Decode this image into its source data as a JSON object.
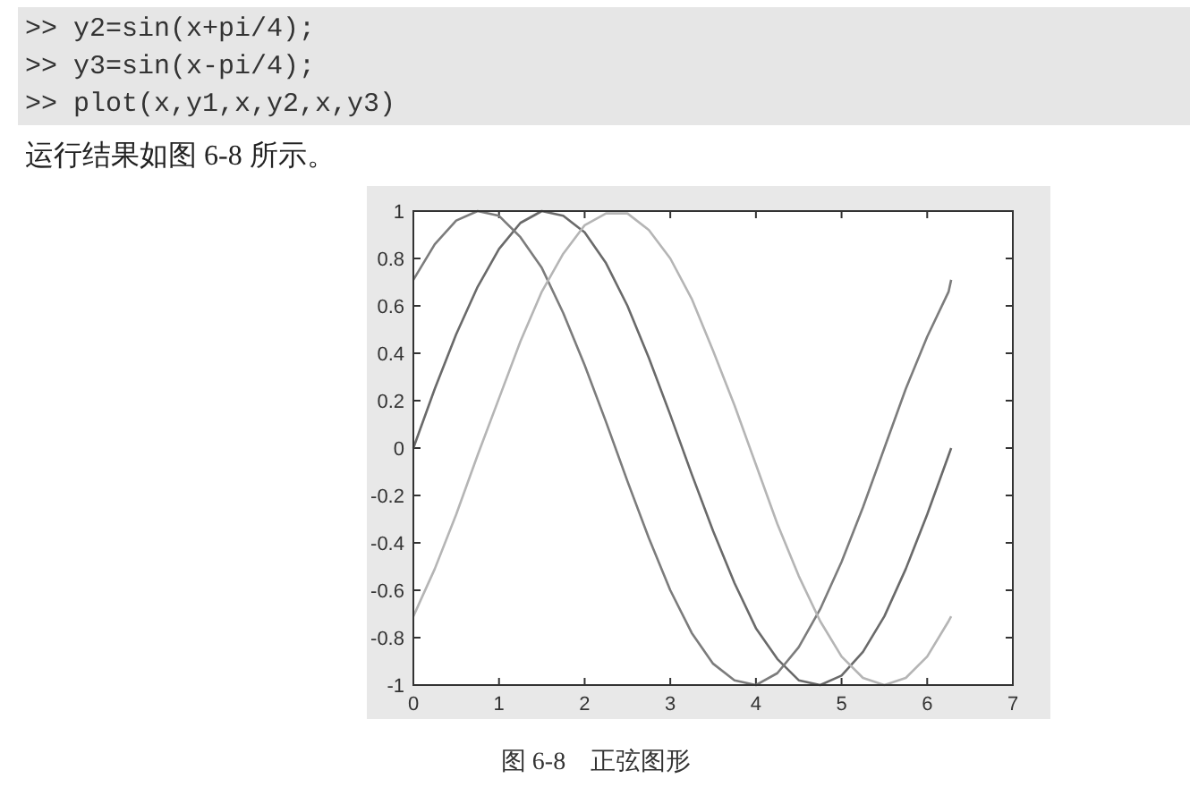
{
  "chart_data": {
    "type": "line",
    "annotations": [
      ">> y2=sin(x+pi/4);",
      ">> y3=sin(x-pi/4);",
      ">> plot(x,y1,x,y2,x,y3)",
      "运行结果如图 6-8 所示。",
      "图 6-8　正弦图形"
    ],
    "xlim": [
      0,
      7
    ],
    "ylim": [
      -1,
      1
    ],
    "xticks": [
      0,
      1,
      2,
      3,
      4,
      5,
      6,
      7
    ],
    "yticks": [
      -1,
      -0.8,
      -0.6,
      -0.4,
      -0.2,
      0,
      0.2,
      0.4,
      0.6,
      0.8,
      1
    ],
    "grid": false,
    "series": [
      {
        "color": "#6a6a6a",
        "x": [
          0,
          0.25,
          0.5,
          0.75,
          1,
          1.25,
          1.5,
          1.75,
          2,
          2.25,
          2.5,
          2.75,
          3,
          3.25,
          3.5,
          3.75,
          4,
          4.25,
          4.5,
          4.75,
          5,
          5.25,
          5.5,
          5.75,
          6,
          6.25,
          6.28
        ],
        "values": [
          0,
          0.25,
          0.48,
          0.68,
          0.84,
          0.95,
          1.0,
          0.98,
          0.91,
          0.78,
          0.6,
          0.38,
          0.14,
          -0.11,
          -0.35,
          -0.57,
          -0.76,
          -0.89,
          -0.98,
          -1.0,
          -0.96,
          -0.86,
          -0.71,
          -0.51,
          -0.28,
          -0.03,
          0
        ]
      },
      {
        "color": "#7c7c7c",
        "x": [
          0,
          0.25,
          0.5,
          0.75,
          1,
          1.25,
          1.5,
          1.75,
          2,
          2.25,
          2.5,
          2.75,
          3,
          3.25,
          3.5,
          3.75,
          4,
          4.25,
          4.5,
          4.75,
          5,
          5.25,
          5.5,
          5.75,
          6,
          6.25,
          6.28
        ],
        "values": [
          0.71,
          0.86,
          0.96,
          1.0,
          0.98,
          0.89,
          0.76,
          0.57,
          0.35,
          0.11,
          -0.14,
          -0.38,
          -0.6,
          -0.78,
          -0.91,
          -0.98,
          -1.0,
          -0.95,
          -0.84,
          -0.68,
          -0.48,
          -0.25,
          0,
          0.25,
          0.47,
          0.66,
          0.71
        ]
      },
      {
        "color": "#b5b5b5",
        "x": [
          0,
          0.25,
          0.5,
          0.75,
          1,
          1.25,
          1.5,
          1.75,
          2,
          2.25,
          2.5,
          2.75,
          3,
          3.25,
          3.5,
          3.75,
          4,
          4.25,
          4.5,
          4.75,
          5,
          5.25,
          5.5,
          5.75,
          6,
          6.25,
          6.28
        ],
        "values": [
          -0.71,
          -0.51,
          -0.28,
          -0.03,
          0.21,
          0.45,
          0.66,
          0.82,
          0.94,
          0.99,
          0.99,
          0.92,
          0.8,
          0.63,
          0.41,
          0.18,
          -0.07,
          -0.32,
          -0.54,
          -0.73,
          -0.88,
          -0.97,
          -1.0,
          -0.97,
          -0.88,
          -0.73,
          -0.71
        ]
      }
    ]
  }
}
